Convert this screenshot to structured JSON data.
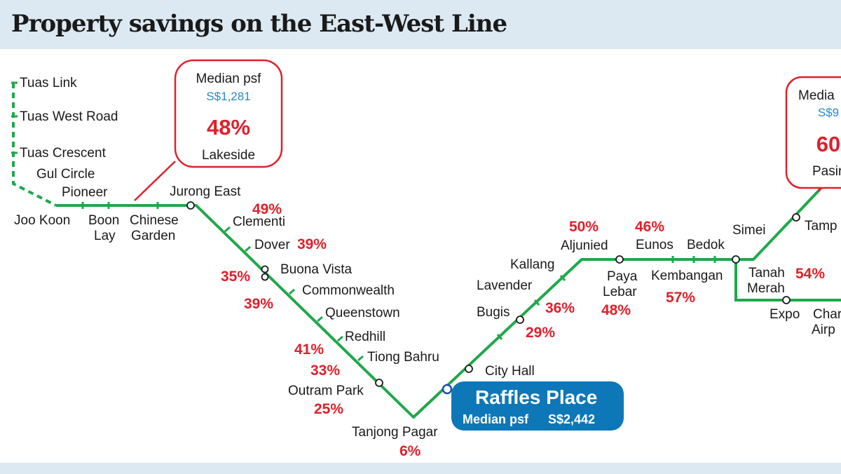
{
  "title": "Property savings on the East-West Line",
  "colors": {
    "line": "#1fa84a",
    "accent_red": "#e0202b",
    "accent_blue": "#2a86c5",
    "highlight_bg": "#0d77b8",
    "header_bg": "#dce9f2"
  },
  "stations": {
    "tuas_link": "Tuas Link",
    "tuas_west_road": "Tuas West Road",
    "tuas_crescent": "Tuas Crescent",
    "gul_circle": "Gul Circle",
    "pioneer": "Pioneer",
    "joo_koon": "Joo Koon",
    "boon_lay_1": "Boon",
    "boon_lay_2": "Lay",
    "chinese_garden_1": "Chinese",
    "chinese_garden_2": "Garden",
    "jurong_east": "Jurong East",
    "clementi": "Clementi",
    "dover": "Dover",
    "buona_vista": "Buona Vista",
    "commonwealth": "Commonwealth",
    "queenstown": "Queenstown",
    "redhill": "Redhill",
    "tiong_bahru": "Tiong Bahru",
    "outram_park": "Outram Park",
    "tanjong_pagar": "Tanjong Pagar",
    "city_hall": "City Hall",
    "bugis": "Bugis",
    "lavender": "Lavender",
    "kallang": "Kallang",
    "aljunied": "Aljunied",
    "paya_lebar_1": "Paya",
    "paya_lebar_2": "Lebar",
    "eunos": "Eunos",
    "kembangan": "Kembangan",
    "bedok": "Bedok",
    "simei": "Simei",
    "tampines": "Tamp",
    "tanah_merah_1": "Tanah",
    "tanah_merah_2": "Merah",
    "expo": "Expo",
    "changi_airport_1": "Char",
    "changi_airport_2": "Airp"
  },
  "savings": {
    "clementi": "49%",
    "dover": "39%",
    "buona_vista": "35%",
    "commonwealth": "39%",
    "redhill": "41%",
    "tiong_bahru": "33%",
    "outram_park": "25%",
    "tanjong_pagar": "6%",
    "bugis": "29%",
    "lavender": "36%",
    "aljunied": "50%",
    "paya_lebar": "48%",
    "eunos": "46%",
    "kembangan": "57%",
    "tanah_merah": "54%"
  },
  "callout_lakeside": {
    "label": "Median psf",
    "value": "S$1,281",
    "pct": "48%",
    "station": "Lakeside"
  },
  "callout_pasir_ris": {
    "label": "Media",
    "value": "S$9",
    "pct": "60",
    "station": "Pasir"
  },
  "raffles_place": {
    "name": "Raffles Place",
    "sub_label": "Median psf",
    "sub_value": "S$2,442"
  }
}
